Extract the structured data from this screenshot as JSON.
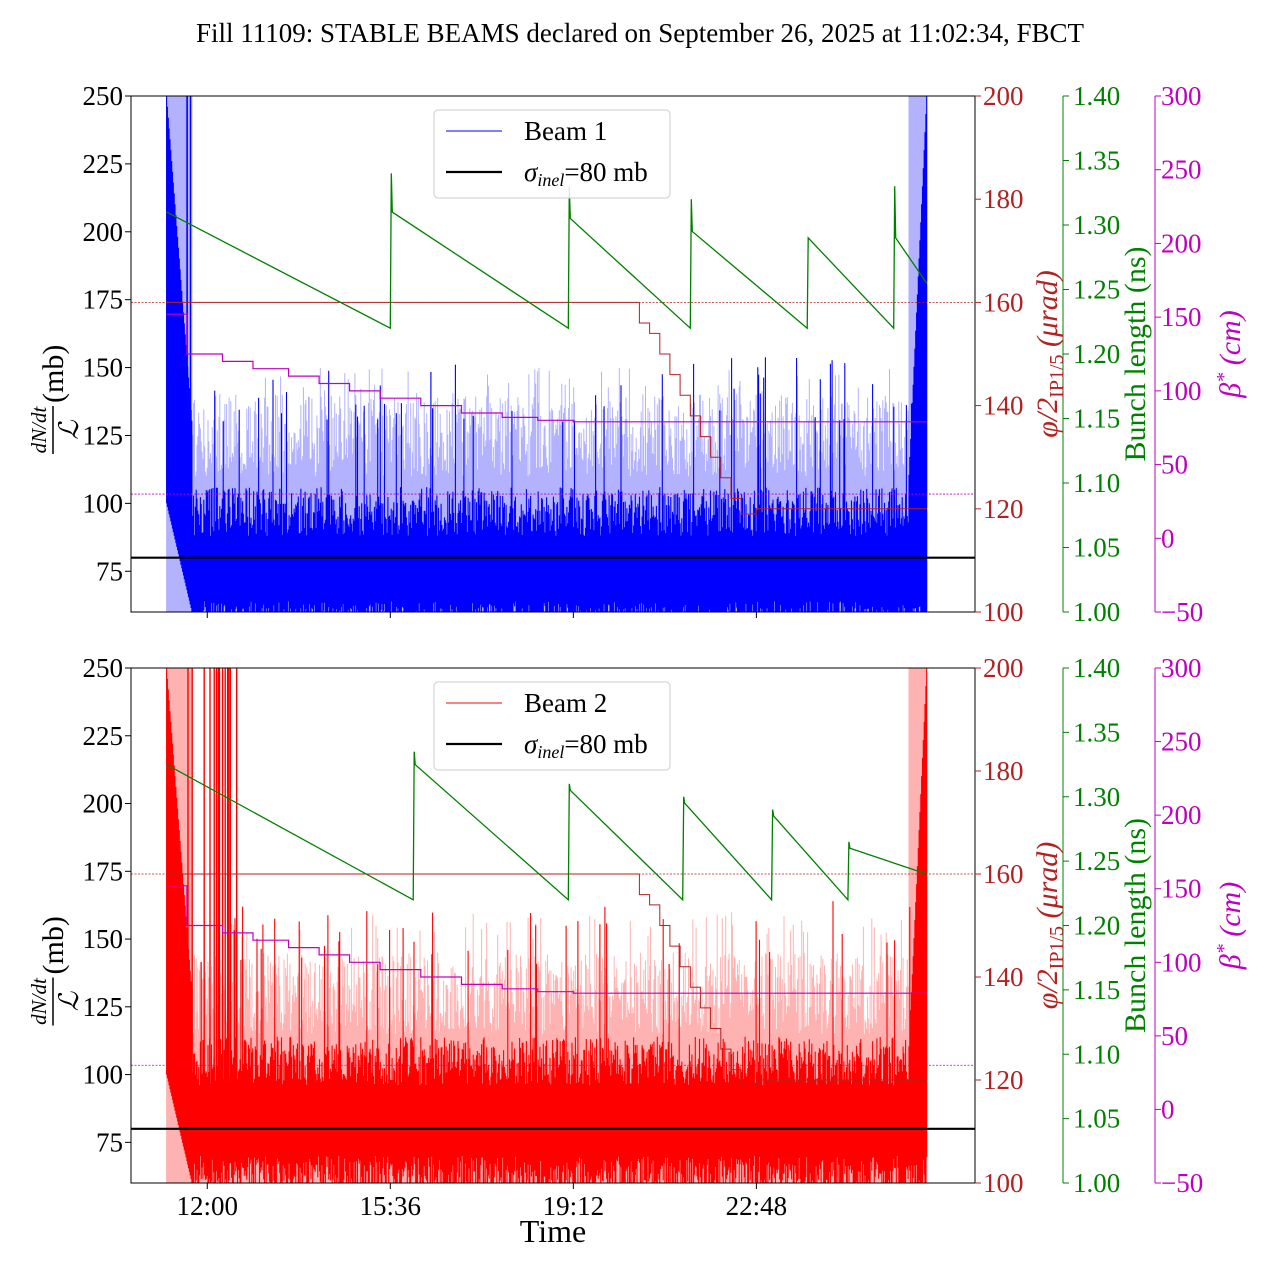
{
  "figure": {
    "title": "Fill 11109: STABLE BEAMS declared on September 26, 2025 at 11:02:34, FBCT",
    "xlabel": "Time"
  },
  "axes": {
    "left_ylabel_fraction_top": "dN/dt",
    "left_ylabel_fraction_bottom": "ℒ",
    "left_ylabel_unit": " (mb)",
    "right1_label_prefix": "φ/2",
    "right1_label_sub": "IP1/5",
    "right1_label_unit": " (μrad)",
    "right2_label": "Bunch length (ns)",
    "right3_label_main": "β",
    "right3_label_sup": "*",
    "right3_label_unit": " (cm)",
    "colors": {
      "left": "#000000",
      "right1": "#b22222",
      "right2": "#008000",
      "right3": "#c000c0"
    }
  },
  "chart_data": [
    {
      "type": "line",
      "panel": "top",
      "legend": [
        {
          "name": "Beam 1",
          "color": "#0000ff"
        },
        {
          "name": "σinel=80 mb",
          "color": "#000000",
          "sigma": "σ",
          "sub": "inel",
          "rest": "=80 mb"
        }
      ],
      "x_range_hours": [
        10.5,
        27.1
      ],
      "x_ticks": [
        {
          "v": 12.0,
          "label": "12:00"
        },
        {
          "v": 15.6,
          "label": "15:36"
        },
        {
          "v": 19.2,
          "label": "19:12"
        },
        {
          "v": 22.8,
          "label": "22:48"
        }
      ],
      "left_axis": {
        "ylim": [
          60,
          250
        ],
        "ticks": [
          75,
          100,
          125,
          150,
          175,
          200,
          225,
          250
        ]
      },
      "right1_axis": {
        "ylim": [
          100,
          200
        ],
        "ticks": [
          100,
          120,
          140,
          160,
          180,
          200
        ]
      },
      "right2_axis": {
        "ylim": [
          1.0,
          1.4
        ],
        "ticks": [
          "1.00",
          "1.05",
          "1.10",
          "1.15",
          "1.20",
          "1.25",
          "1.30",
          "1.35",
          "1.40"
        ]
      },
      "right3_axis": {
        "ylim": [
          -50,
          300
        ],
        "ticks": [
          -50,
          0,
          50,
          100,
          150,
          200,
          250,
          300
        ]
      },
      "reference_lines": {
        "sigma_inel_mb": 80,
        "crossing_angle_urad": 160,
        "beta_star_cm": 30
      },
      "beam_series": {
        "name": "Beam 1",
        "color": "#0000ff",
        "start_hours": 11.2,
        "end_hours": 26.15,
        "samples": 900,
        "baseline_mb": 82,
        "dark_upper_mb": 96,
        "dark_lower_mb": 64,
        "light_upper_mb": 130,
        "spike_mb": 140,
        "start_peak_mb": 250,
        "end_peak_mb": 250
      },
      "crossing_angle_urad": [
        [
          11.2,
          160
        ],
        [
          20.3,
          160
        ],
        [
          20.5,
          156
        ],
        [
          20.7,
          154
        ],
        [
          20.9,
          150
        ],
        [
          21.1,
          146
        ],
        [
          21.3,
          142
        ],
        [
          21.5,
          138
        ],
        [
          21.7,
          134
        ],
        [
          21.9,
          130
        ],
        [
          22.1,
          126
        ],
        [
          22.3,
          122
        ],
        [
          22.5,
          119
        ],
        [
          22.8,
          120
        ],
        [
          26.15,
          120
        ]
      ],
      "beta_star_cm": [
        [
          11.2,
          152
        ],
        [
          11.55,
          152
        ],
        [
          11.6,
          125
        ],
        [
          12.0,
          125
        ],
        [
          12.3,
          120
        ],
        [
          12.9,
          115
        ],
        [
          13.6,
          110
        ],
        [
          14.2,
          105
        ],
        [
          14.8,
          100
        ],
        [
          15.4,
          95
        ],
        [
          16.2,
          90
        ],
        [
          17.0,
          85
        ],
        [
          17.8,
          82
        ],
        [
          18.5,
          80
        ],
        [
          19.2,
          79
        ],
        [
          26.15,
          79
        ]
      ],
      "bunch_length_ns": [
        [
          11.2,
          1.31
        ],
        [
          15.6,
          1.22
        ],
        [
          15.62,
          1.34
        ],
        [
          15.64,
          1.31
        ],
        [
          19.1,
          1.22
        ],
        [
          19.12,
          1.33
        ],
        [
          19.14,
          1.305
        ],
        [
          21.5,
          1.22
        ],
        [
          21.52,
          1.32
        ],
        [
          21.54,
          1.295
        ],
        [
          23.8,
          1.22
        ],
        [
          23.82,
          1.29
        ],
        [
          25.5,
          1.22
        ],
        [
          25.52,
          1.33
        ],
        [
          25.54,
          1.29
        ],
        [
          26.15,
          1.255
        ]
      ]
    },
    {
      "type": "line",
      "panel": "bottom",
      "legend": [
        {
          "name": "Beam 2",
          "color": "#ff0000"
        },
        {
          "name": "σinel=80 mb",
          "color": "#000000",
          "sigma": "σ",
          "sub": "inel",
          "rest": "=80 mb"
        }
      ],
      "x_range_hours": [
        10.5,
        27.1
      ],
      "x_ticks": [
        {
          "v": 12.0,
          "label": "12:00"
        },
        {
          "v": 15.6,
          "label": "15:36"
        },
        {
          "v": 19.2,
          "label": "19:12"
        },
        {
          "v": 22.8,
          "label": "22:48"
        }
      ],
      "left_axis": {
        "ylim": [
          60,
          250
        ],
        "ticks": [
          75,
          100,
          125,
          150,
          175,
          200,
          225,
          250
        ]
      },
      "right1_axis": {
        "ylim": [
          100,
          200
        ],
        "ticks": [
          100,
          120,
          140,
          160,
          180,
          200
        ]
      },
      "right2_axis": {
        "ylim": [
          1.0,
          1.4
        ],
        "ticks": [
          "1.00",
          "1.05",
          "1.10",
          "1.15",
          "1.20",
          "1.25",
          "1.30",
          "1.35",
          "1.40"
        ]
      },
      "right3_axis": {
        "ylim": [
          -50,
          300
        ],
        "ticks": [
          -50,
          0,
          50,
          100,
          150,
          200,
          250,
          300
        ]
      },
      "reference_lines": {
        "sigma_inel_mb": 80,
        "crossing_angle_urad": 160,
        "beta_star_cm": 30
      },
      "beam_series": {
        "name": "Beam 2",
        "color": "#ff0000",
        "start_hours": 11.2,
        "end_hours": 26.15,
        "samples": 900,
        "baseline_mb": 88,
        "dark_upper_mb": 104,
        "dark_lower_mb": 70,
        "light_upper_mb": 135,
        "spike_mb": 150,
        "start_peak_mb": 250,
        "end_peak_mb": 250
      },
      "crossing_angle_urad": [
        [
          11.2,
          160
        ],
        [
          20.3,
          160
        ],
        [
          20.5,
          156
        ],
        [
          20.7,
          154
        ],
        [
          20.9,
          150
        ],
        [
          21.1,
          146
        ],
        [
          21.3,
          142
        ],
        [
          21.5,
          138
        ],
        [
          21.7,
          134
        ],
        [
          21.9,
          130
        ],
        [
          22.1,
          126
        ],
        [
          22.3,
          122
        ],
        [
          22.5,
          119
        ],
        [
          22.8,
          120
        ],
        [
          26.15,
          120
        ]
      ],
      "beta_star_cm": [
        [
          11.2,
          152
        ],
        [
          11.55,
          152
        ],
        [
          11.6,
          125
        ],
        [
          12.0,
          125
        ],
        [
          12.3,
          120
        ],
        [
          12.9,
          115
        ],
        [
          13.6,
          110
        ],
        [
          14.2,
          105
        ],
        [
          14.8,
          100
        ],
        [
          15.4,
          95
        ],
        [
          16.2,
          90
        ],
        [
          17.0,
          85
        ],
        [
          17.8,
          82
        ],
        [
          18.5,
          80
        ],
        [
          19.2,
          79
        ],
        [
          26.15,
          79
        ]
      ],
      "bunch_length_ns": [
        [
          11.2,
          1.325
        ],
        [
          16.05,
          1.22
        ],
        [
          16.07,
          1.335
        ],
        [
          16.09,
          1.325
        ],
        [
          19.1,
          1.22
        ],
        [
          19.12,
          1.31
        ],
        [
          19.14,
          1.305
        ],
        [
          21.35,
          1.22
        ],
        [
          21.37,
          1.3
        ],
        [
          21.39,
          1.295
        ],
        [
          23.1,
          1.22
        ],
        [
          23.12,
          1.29
        ],
        [
          23.14,
          1.285
        ],
        [
          24.6,
          1.22
        ],
        [
          24.62,
          1.265
        ],
        [
          24.64,
          1.26
        ],
        [
          26.15,
          1.24
        ]
      ]
    }
  ]
}
